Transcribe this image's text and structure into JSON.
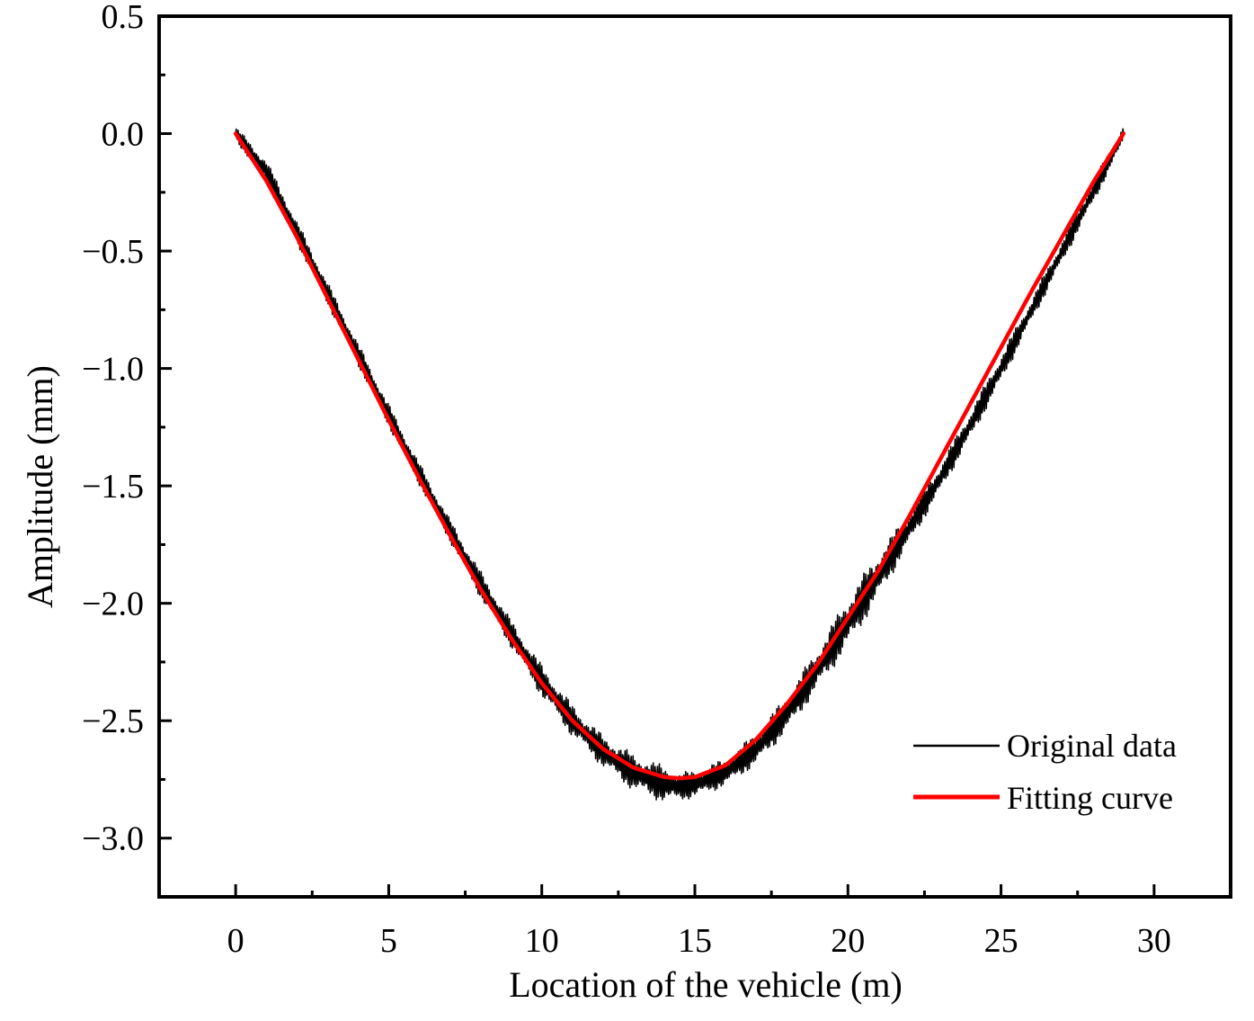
{
  "chart_data": {
    "type": "line",
    "xlabel": "Location of the vehicle (m)",
    "ylabel": "Amplitude (mm)",
    "xlim": [
      -2.5,
      32.5
    ],
    "ylim": [
      -3.25,
      0.5
    ],
    "xticks": [
      0,
      5,
      10,
      15,
      20,
      25,
      30
    ],
    "xtick_labels": [
      "0",
      "5",
      "10",
      "15",
      "20",
      "25",
      "30"
    ],
    "yticks": [
      0.5,
      0.0,
      -0.5,
      -1.0,
      -1.5,
      -2.0,
      -2.5,
      -3.0
    ],
    "ytick_labels": [
      "0.5",
      "0.0",
      "−0.5",
      "−1.0",
      "−1.5",
      "−2.0",
      "−2.5",
      "−3.0"
    ],
    "minor_ticks": true,
    "grid": false,
    "legend_position": "bottom-right",
    "series": [
      {
        "name": "Original data",
        "color": "#000000",
        "note_style": "dense oscillation around fitted curve",
        "x": [
          0.0,
          1.0,
          2.0,
          3.0,
          4.0,
          5.0,
          6.0,
          7.0,
          8.0,
          9.0,
          10.0,
          11.0,
          12.0,
          13.0,
          14.0,
          14.5,
          15.0,
          16.0,
          17.0,
          18.0,
          19.0,
          20.0,
          21.0,
          22.0,
          23.0,
          24.0,
          25.0,
          26.0,
          27.0,
          28.0,
          29.0
        ],
        "y": [
          0.0,
          -0.16,
          -0.42,
          -0.68,
          -0.94,
          -1.2,
          -1.45,
          -1.69,
          -1.92,
          -2.13,
          -2.33,
          -2.5,
          -2.63,
          -2.72,
          -2.77,
          -2.78,
          -2.77,
          -2.72,
          -2.62,
          -2.47,
          -2.28,
          -2.08,
          -1.88,
          -1.68,
          -1.47,
          -1.24,
          -1.0,
          -0.75,
          -0.5,
          -0.25,
          0.0
        ],
        "amplitude": [
          0.03,
          0.05,
          0.05,
          0.05,
          0.05,
          0.05,
          0.05,
          0.05,
          0.06,
          0.06,
          0.07,
          0.07,
          0.07,
          0.08,
          0.08,
          0.06,
          0.06,
          0.06,
          0.07,
          0.08,
          0.09,
          0.11,
          0.1,
          0.07,
          0.06,
          0.06,
          0.06,
          0.05,
          0.05,
          0.05,
          0.04
        ]
      },
      {
        "name": "Fitting curve",
        "color": "#ff0000",
        "x": [
          0.0,
          1.0,
          2.0,
          3.0,
          4.0,
          5.0,
          6.0,
          7.0,
          8.0,
          9.0,
          10.0,
          11.0,
          12.0,
          13.0,
          14.0,
          14.5,
          15.0,
          16.0,
          17.0,
          18.0,
          19.0,
          20.0,
          21.0,
          22.0,
          23.0,
          24.0,
          25.0,
          26.0,
          27.0,
          28.0,
          29.0
        ],
        "y": [
          0.0,
          -0.2,
          -0.44,
          -0.7,
          -0.96,
          -1.22,
          -1.47,
          -1.71,
          -1.94,
          -2.15,
          -2.34,
          -2.5,
          -2.62,
          -2.7,
          -2.74,
          -2.745,
          -2.74,
          -2.69,
          -2.58,
          -2.43,
          -2.26,
          -2.06,
          -1.86,
          -1.63,
          -1.39,
          -1.15,
          -0.91,
          -0.67,
          -0.44,
          -0.21,
          0.0
        ]
      }
    ]
  }
}
